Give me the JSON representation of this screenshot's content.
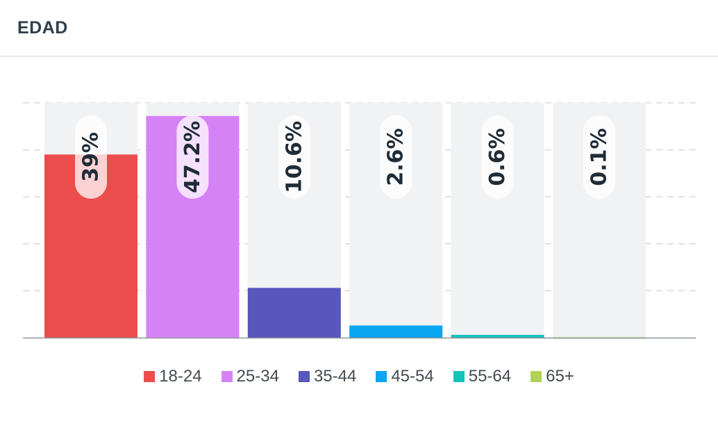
{
  "header": {
    "title": "EDAD"
  },
  "chart_data": {
    "type": "bar",
    "title": "EDAD",
    "categories": [
      "18-24",
      "25-34",
      "35-44",
      "45-54",
      "55-64",
      "65+"
    ],
    "values": [
      39,
      47.2,
      10.6,
      2.6,
      0.6,
      0.1
    ],
    "labels": [
      "39%",
      "47.2%",
      "10.6%",
      "2.6%",
      "0.6%",
      "0.1%"
    ],
    "colors": [
      "#ea4d4b",
      "#d682f7",
      "#5757bc",
      "#0aa6f0",
      "#14c4bc",
      "#b3d255"
    ],
    "ylim": [
      0,
      50
    ],
    "grid": true,
    "legend_placement": "bottom"
  }
}
